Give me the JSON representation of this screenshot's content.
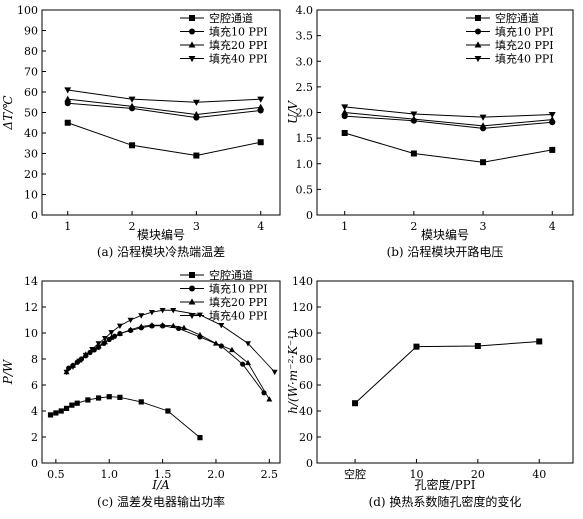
{
  "chart_data": [
    {
      "type": "line",
      "caption": "(a) 沿程模块冷热端温差",
      "xlabel": "模块编号",
      "ylabel": "ΔT/℃",
      "xlim": [
        0.6,
        4.3
      ],
      "ylim": [
        0,
        100
      ],
      "x_ticks": [
        1,
        2,
        3,
        4
      ],
      "y_ticks": [
        0,
        10,
        20,
        30,
        40,
        50,
        60,
        70,
        80,
        90,
        100
      ],
      "grid": false,
      "legend_position": "top-right",
      "series": [
        {
          "name": "空腔通道",
          "marker": "square",
          "x": [
            1,
            2,
            3,
            4
          ],
          "y": [
            45,
            34,
            29,
            35.5
          ]
        },
        {
          "name": "填充10 PPI",
          "marker": "circle",
          "x": [
            1,
            2,
            3,
            4
          ],
          "y": [
            54.5,
            52,
            47.5,
            51
          ]
        },
        {
          "name": "填充20 PPI",
          "marker": "triangle-up",
          "x": [
            1,
            2,
            3,
            4
          ],
          "y": [
            56.5,
            53,
            49,
            52.5
          ]
        },
        {
          "name": "填充40 PPI",
          "marker": "triangle-down",
          "x": [
            1,
            2,
            3,
            4
          ],
          "y": [
            61,
            56.5,
            55,
            56.5
          ]
        }
      ]
    },
    {
      "type": "line",
      "caption": "(b) 沿程模块开路电压",
      "xlabel": "模块编号",
      "ylabel": "U/V",
      "xlim": [
        0.6,
        4.3
      ],
      "ylim": [
        0,
        4.0
      ],
      "x_ticks": [
        1,
        2,
        3,
        4
      ],
      "y_ticks": [
        "0",
        "0.5",
        "1.0",
        "1.5",
        "2.0",
        "2.5",
        "3.0",
        "3.5",
        "4.0"
      ],
      "grid": false,
      "legend_position": "top-right",
      "series": [
        {
          "name": "空腔通道",
          "marker": "square",
          "x": [
            1,
            2,
            3,
            4
          ],
          "y": [
            1.6,
            1.2,
            1.03,
            1.27
          ]
        },
        {
          "name": "填充10 PPI",
          "marker": "circle",
          "x": [
            1,
            2,
            3,
            4
          ],
          "y": [
            1.93,
            1.84,
            1.69,
            1.81
          ]
        },
        {
          "name": "填充20 PPI",
          "marker": "triangle-up",
          "x": [
            1,
            2,
            3,
            4
          ],
          "y": [
            2.0,
            1.87,
            1.74,
            1.86
          ]
        },
        {
          "name": "填充40 PPI",
          "marker": "triangle-down",
          "x": [
            1,
            2,
            3,
            4
          ],
          "y": [
            2.11,
            1.97,
            1.91,
            1.96
          ]
        }
      ]
    },
    {
      "type": "scatter",
      "caption": "(c) 温差发电器输出功率",
      "xlabel": "I/A",
      "ylabel": "P/W",
      "xlim": [
        0.37,
        2.6
      ],
      "ylim": [
        0,
        14
      ],
      "x_ticks": [
        "0.5",
        "1.0",
        "1.5",
        "2.0",
        "2.5"
      ],
      "y_ticks": [
        0,
        2,
        4,
        6,
        8,
        10,
        12,
        14
      ],
      "grid": false,
      "legend_position": "top-right",
      "series": [
        {
          "name": "空腔通道",
          "marker": "square",
          "x": [
            0.45,
            0.5,
            0.55,
            0.6,
            0.65,
            0.7,
            0.8,
            0.9,
            1.0,
            1.1,
            1.3,
            1.55,
            1.85
          ],
          "y": [
            3.7,
            3.85,
            4.0,
            4.2,
            4.45,
            4.6,
            4.85,
            5.0,
            5.1,
            5.05,
            4.7,
            4.0,
            1.95
          ]
        },
        {
          "name": "填充10 PPI",
          "marker": "circle",
          "x": [
            0.62,
            0.66,
            0.7,
            0.74,
            0.78,
            0.82,
            0.86,
            0.9,
            0.95,
            1.0,
            1.05,
            1.1,
            1.2,
            1.3,
            1.4,
            1.5,
            1.65,
            1.85,
            2.05,
            2.25,
            2.45
          ],
          "y": [
            7.3,
            7.5,
            7.75,
            8.0,
            8.25,
            8.5,
            8.7,
            8.9,
            9.2,
            9.5,
            9.75,
            9.95,
            10.2,
            10.4,
            10.55,
            10.55,
            10.35,
            9.7,
            9.0,
            7.6,
            5.4
          ]
        },
        {
          "name": "填充20 PPI",
          "marker": "triangle-up",
          "x": [
            0.6,
            0.66,
            0.72,
            0.78,
            0.84,
            0.9,
            0.96,
            1.02,
            1.1,
            1.2,
            1.3,
            1.4,
            1.5,
            1.6,
            1.7,
            1.85,
            2.0,
            2.15,
            2.3,
            2.5
          ],
          "y": [
            7.0,
            7.5,
            7.9,
            8.35,
            8.7,
            9.0,
            9.3,
            9.65,
            9.95,
            10.25,
            10.5,
            10.6,
            10.6,
            10.55,
            10.4,
            9.85,
            9.2,
            8.7,
            7.7,
            4.9
          ]
        },
        {
          "name": "填充40 PPI",
          "marker": "triangle-down",
          "x": [
            0.6,
            0.66,
            0.72,
            0.78,
            0.84,
            0.9,
            0.96,
            1.02,
            1.1,
            1.2,
            1.3,
            1.4,
            1.5,
            1.6,
            1.85,
            2.05,
            2.3,
            2.55
          ],
          "y": [
            7.0,
            7.4,
            7.85,
            8.3,
            8.75,
            9.2,
            9.6,
            10.05,
            10.55,
            11.0,
            11.35,
            11.6,
            11.75,
            11.75,
            11.4,
            10.6,
            9.2,
            7.0
          ]
        }
      ]
    },
    {
      "type": "line",
      "caption": "(d) 换热系数随孔密度的变化",
      "xlabel": "孔密度/PPI",
      "ylabel": "h/(W·m⁻²·K⁻¹)",
      "categories": [
        "空腔",
        "10",
        "20",
        "40"
      ],
      "ylim": [
        0,
        140
      ],
      "y_ticks": [
        0,
        20,
        40,
        60,
        80,
        100,
        120,
        140
      ],
      "grid": false,
      "series": [
        {
          "marker": "square",
          "values": [
            46,
            89.5,
            90,
            93.5
          ]
        }
      ]
    }
  ]
}
